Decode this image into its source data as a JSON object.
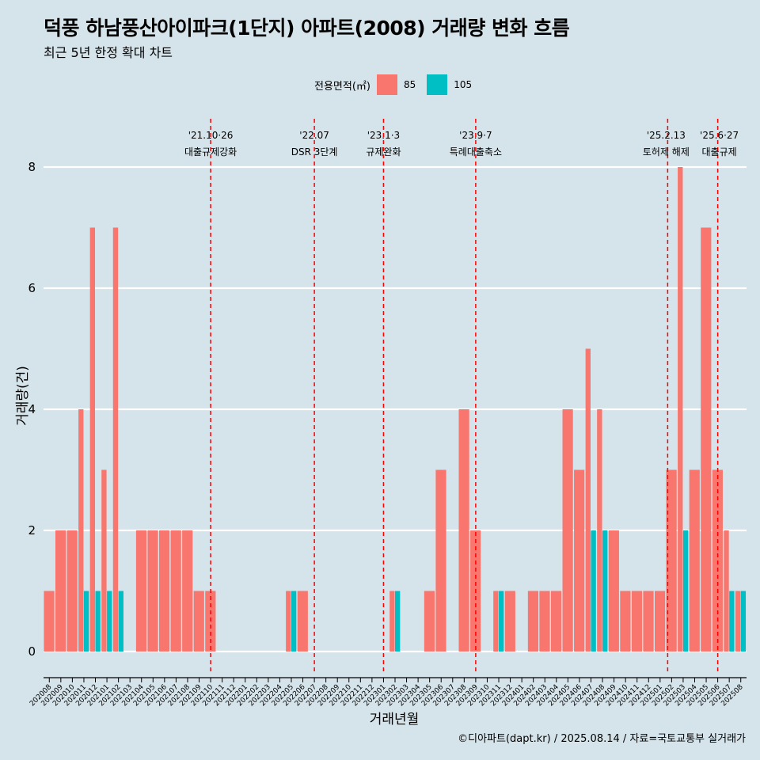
{
  "title": "덕풍 하남풍산아이파크(1단지) 아파트(2008) 거래량 변화 흐름",
  "subtitle": "최근 5년 한정 확대 차트",
  "caption": "©디아파트(dapt.kr) / 2025.08.14 / 자료=국토교통부 실거래가",
  "legend": {
    "title": "전용면적(㎡)",
    "items": [
      {
        "label": "85",
        "color": "#f8766d"
      },
      {
        "label": "105",
        "color": "#00bfc4"
      }
    ]
  },
  "chart_data": {
    "type": "bar",
    "xlabel": "거래년월",
    "ylabel": "거래량(건)",
    "ylim": [
      0,
      8
    ],
    "yticks": [
      0,
      2,
      4,
      6,
      8
    ],
    "grid": true,
    "legend_position": "top",
    "categories": [
      "202008",
      "202009",
      "202010",
      "202011",
      "202012",
      "202101",
      "202102",
      "202103",
      "202104",
      "202105",
      "202106",
      "202107",
      "202108",
      "202109",
      "202110",
      "202111",
      "202112",
      "202201",
      "202202",
      "202203",
      "202204",
      "202205",
      "202206",
      "202207",
      "202208",
      "202209",
      "202210",
      "202211",
      "202212",
      "202301",
      "202302",
      "202303",
      "202304",
      "202305",
      "202306",
      "202307",
      "202308",
      "202309",
      "202310",
      "202311",
      "202312",
      "202401",
      "202402",
      "202403",
      "202404",
      "202405",
      "202406",
      "202407",
      "202408",
      "202409",
      "202410",
      "202411",
      "202412",
      "202501",
      "202502",
      "202503",
      "202504",
      "202505",
      "202506",
      "202507",
      "202508"
    ],
    "series": [
      {
        "name": "85",
        "color": "#f8766d",
        "values": [
          1,
          2,
          2,
          4,
          7,
          3,
          7,
          0,
          2,
          2,
          2,
          2,
          2,
          1,
          1,
          0,
          0,
          0,
          0,
          0,
          0,
          1,
          1,
          0,
          0,
          0,
          0,
          0,
          0,
          0,
          1,
          0,
          0,
          1,
          3,
          0,
          4,
          2,
          0,
          1,
          1,
          0,
          1,
          1,
          1,
          4,
          3,
          5,
          4,
          2,
          1,
          1,
          1,
          1,
          3,
          8,
          3,
          7,
          3,
          2,
          1
        ]
      },
      {
        "name": "105",
        "color": "#00bfc4",
        "values": [
          0,
          0,
          0,
          1,
          1,
          1,
          1,
          0,
          0,
          0,
          0,
          0,
          0,
          0,
          0,
          0,
          0,
          0,
          0,
          0,
          0,
          1,
          0,
          0,
          0,
          0,
          0,
          0,
          0,
          0,
          1,
          0,
          0,
          0,
          0,
          0,
          0,
          0,
          0,
          1,
          0,
          0,
          0,
          0,
          0,
          0,
          0,
          2,
          2,
          0,
          0,
          0,
          0,
          0,
          0,
          2,
          0,
          0,
          0,
          1,
          1
        ]
      }
    ],
    "annotations": [
      {
        "month": "202110",
        "date": "'21.10·26",
        "label": "대출규제강화"
      },
      {
        "month": "202207",
        "date": "'22.07",
        "label": "DSR 3단계"
      },
      {
        "month": "202301",
        "date": "'23.1·3",
        "label": "규제완화"
      },
      {
        "month": "202309",
        "date": "'23.9·7",
        "label": "특례대출축소"
      },
      {
        "month": "202502",
        "date": "'25.2.13",
        "label": "토허제 해제"
      },
      {
        "month": "202506",
        "date": "'25.6·27",
        "label": "대출규제"
      }
    ]
  }
}
